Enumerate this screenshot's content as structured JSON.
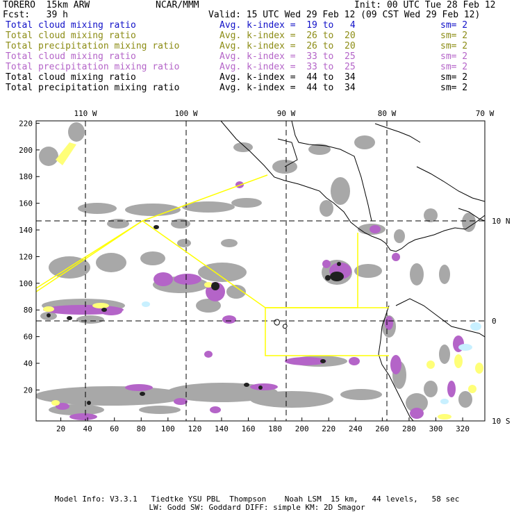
{
  "header": {
    "model": "TORERO  15km ARW",
    "center": "NCAR/MMM",
    "init": "Init: 00 UTC Tue 28 Feb 12",
    "fcst": "Fcst:   39 h",
    "valid": "Valid: 15 UTC Wed 29 Feb 12 (09 CST Wed 29 Feb 12)"
  },
  "fields": [
    {
      "name": "Total cloud mixing ratio",
      "index": "Avg. k-index =  19 to   4",
      "sm": "sm= 2",
      "color": "#1010c8"
    },
    {
      "name": "Total cloud mixing ratio",
      "index": "Avg. k-index =  26 to  20",
      "sm": "sm= 2",
      "color": "#8c8c14"
    },
    {
      "name": "Total precipitation mixing ratio",
      "index": "Avg. k-index =  26 to  20",
      "sm": "sm= 2",
      "color": "#8c8c14"
    },
    {
      "name": "Total cloud mixing ratio",
      "index": "Avg. k-index =  33 to  25",
      "sm": "sm= 2",
      "color": "#b464c8"
    },
    {
      "name": "Total precipitation mixing ratio",
      "index": "Avg. k-index =  33 to  25",
      "sm": "sm= 2",
      "color": "#b464c8"
    },
    {
      "name": "Total cloud mixing ratio",
      "index": "Avg. k-index =  44 to  34",
      "sm": "sm= 2",
      "color": "#000000"
    },
    {
      "name": "Total precipitation mixing ratio",
      "index": "Avg. k-index =  44 to  34",
      "sm": "sm= 2",
      "color": "#000000"
    }
  ],
  "map": {
    "lon_labels": [
      "110 W",
      "100 W",
      "90 W",
      "80 W",
      "70 W"
    ],
    "lat_labels": [
      "10 N",
      "0",
      "10 S"
    ],
    "x_ticks": [
      "20",
      "40",
      "60",
      "80",
      "100",
      "120",
      "140",
      "160",
      "180",
      "200",
      "220",
      "240",
      "260",
      "280",
      "300",
      "320"
    ],
    "y_ticks": [
      "220",
      "200",
      "180",
      "160",
      "140",
      "120",
      "100",
      "80",
      "60",
      "40",
      "20"
    ],
    "colors": {
      "cloud_light": "#a8a8a8",
      "cloud_dark": "#202020",
      "purple": "#b464c8",
      "yellow": "#ffff78",
      "cyan": "#c8f0ff",
      "box": "#ffff00"
    }
  },
  "footer": {
    "line1": "Model Info: V3.3.1   Tiedtke YSU PBL  Thompson    Noah LSM  15 km,   44 levels,   58 sec",
    "line2": "LW: Godd SW: Goddard DIFF: simple KM: 2D Smagor"
  }
}
